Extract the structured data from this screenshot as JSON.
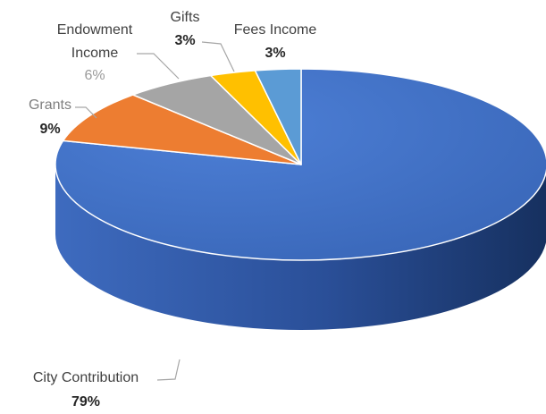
{
  "chart_data": {
    "type": "pie",
    "style": "3d",
    "title": "",
    "categories": [
      "City Contribution",
      "Grants",
      "Endowment Income",
      "Gifts",
      "Fees Income"
    ],
    "values": [
      79,
      9,
      6,
      3,
      3
    ],
    "value_labels": [
      "79%",
      "9%",
      "6%",
      "3%",
      "3%"
    ],
    "label_lines": [
      [
        "City Contribution"
      ],
      [
        "Grants"
      ],
      [
        "Endowment",
        "Income"
      ],
      [
        "Gifts"
      ],
      [
        "Fees Income"
      ]
    ],
    "colors": [
      "#4472c4",
      "#ed7d31",
      "#a5a5a5",
      "#ffc000",
      "#5b9bd5"
    ],
    "side_colors": [
      "#24427e",
      "#9c4e17",
      "#6b6b6b",
      "#a67c00",
      "#2f6598"
    ],
    "legend": "none"
  }
}
